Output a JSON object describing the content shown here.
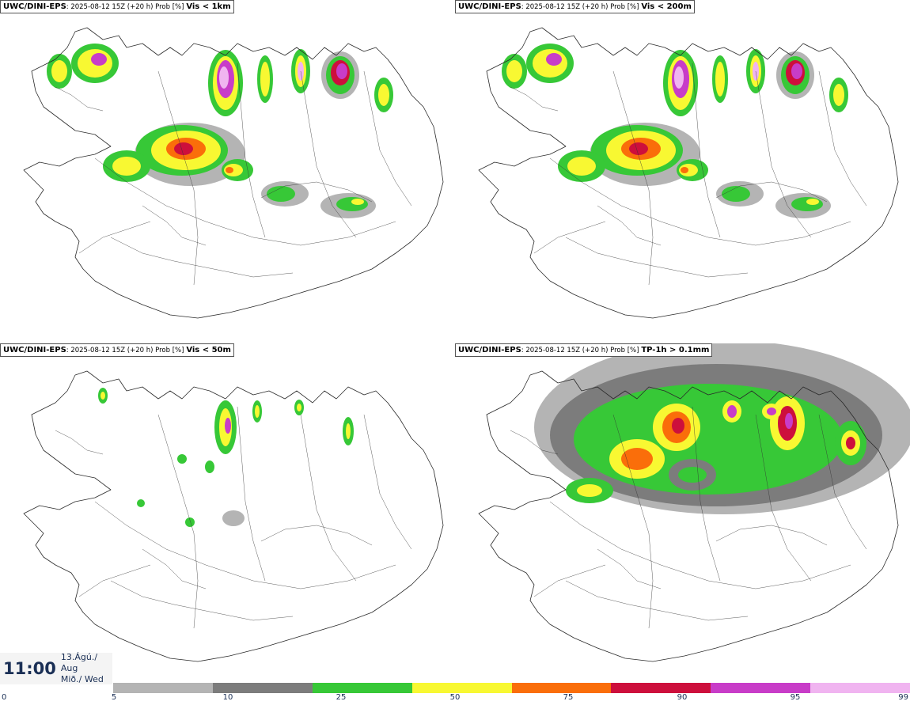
{
  "panels": [
    {
      "model": "UWC/DINI-EPS",
      "desc": ": 2025-08-12 15Z (+20 h) Prob [%]",
      "param": "Vis < 1km",
      "field_intensity": "high"
    },
    {
      "model": "UWC/DINI-EPS",
      "desc": ": 2025-08-12 15Z (+20 h) Prob [%]",
      "param": "Vis < 200m",
      "field_intensity": "high"
    },
    {
      "model": "UWC/DINI-EPS",
      "desc": ": 2025-08-12 15Z (+20 h) Prob [%]",
      "param": "Vis < 50m",
      "field_intensity": "low"
    },
    {
      "model": "UWC/DINI-EPS",
      "desc": ": 2025-08-12 15Z (+20 h) Prob [%]",
      "param": "TP-1h > 0.1mm",
      "field_intensity": "wide"
    }
  ],
  "time": {
    "clock": "11:00",
    "date_line": "13.Ágú./ Aug",
    "day_line": "Mið./ Wed"
  },
  "legend": {
    "ticks": [
      "0",
      "5",
      "10",
      "25",
      "50",
      "75",
      "90",
      "95",
      "99"
    ],
    "colors": [
      "#b4b4b4",
      "#7c7c7c",
      "#37c837",
      "#f8f832",
      "#fa6e0a",
      "#cd0f3c",
      "#c83cc8",
      "#f0b4f0"
    ]
  }
}
